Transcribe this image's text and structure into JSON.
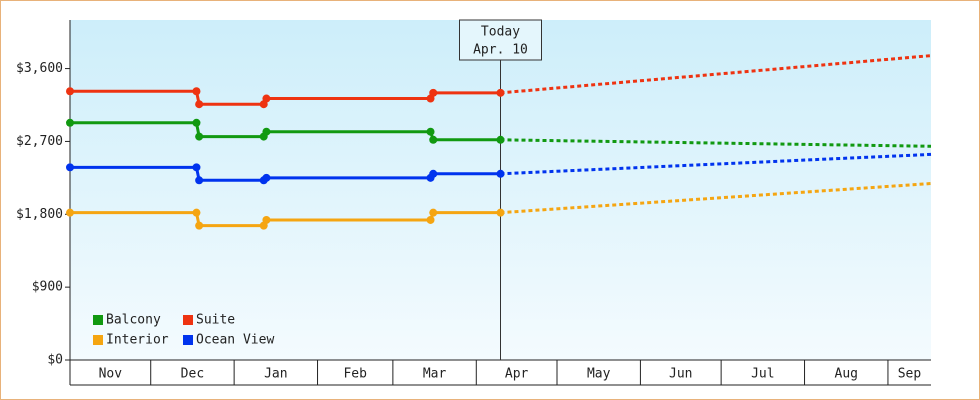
{
  "chart_data": {
    "type": "line",
    "x": [
      0,
      47,
      48,
      72,
      73,
      134,
      135,
      160,
      320
    ],
    "xlim": [
      0,
      320
    ],
    "months": [
      {
        "value": 0,
        "label": "Nov"
      },
      {
        "value": 30,
        "label": "Dec"
      },
      {
        "value": 61,
        "label": "Jan"
      },
      {
        "value": 92,
        "label": "Feb"
      },
      {
        "value": 120,
        "label": "Mar"
      },
      {
        "value": 151,
        "label": "Apr"
      },
      {
        "value": 181,
        "label": "May"
      },
      {
        "value": 212,
        "label": "Jun"
      },
      {
        "value": 242,
        "label": "Jul"
      },
      {
        "value": 273,
        "label": "Aug"
      },
      {
        "value": 304,
        "label": "Sep"
      }
    ],
    "today": {
      "value": 160,
      "title": "Today",
      "label": "Apr. 10"
    },
    "ylim": [
      0,
      4200
    ],
    "yticks": [
      {
        "value": 0,
        "label": "$0"
      },
      {
        "value": 900,
        "label": "$900"
      },
      {
        "value": 1800,
        "label": "$1,800"
      },
      {
        "value": 2700,
        "label": "$2,700"
      },
      {
        "value": 3600,
        "label": "$3,600"
      }
    ],
    "legend": "bottom-left",
    "series": [
      {
        "name": "Balcony",
        "color": "#119911",
        "values": [
          2930,
          2930,
          2760,
          2760,
          2820,
          2820,
          2720,
          2720,
          2640
        ]
      },
      {
        "name": "Suite",
        "color": "#ee3311",
        "values": [
          3320,
          3320,
          3160,
          3160,
          3230,
          3230,
          3300,
          3300,
          3760
        ]
      },
      {
        "name": "Interior",
        "color": "#f5a511",
        "values": [
          1820,
          1820,
          1660,
          1660,
          1730,
          1730,
          1820,
          1820,
          2180
        ]
      },
      {
        "name": "Ocean View",
        "color": "#0033ee",
        "values": [
          2380,
          2380,
          2220,
          2220,
          2250,
          2250,
          2300,
          2300,
          2540
        ]
      }
    ]
  }
}
